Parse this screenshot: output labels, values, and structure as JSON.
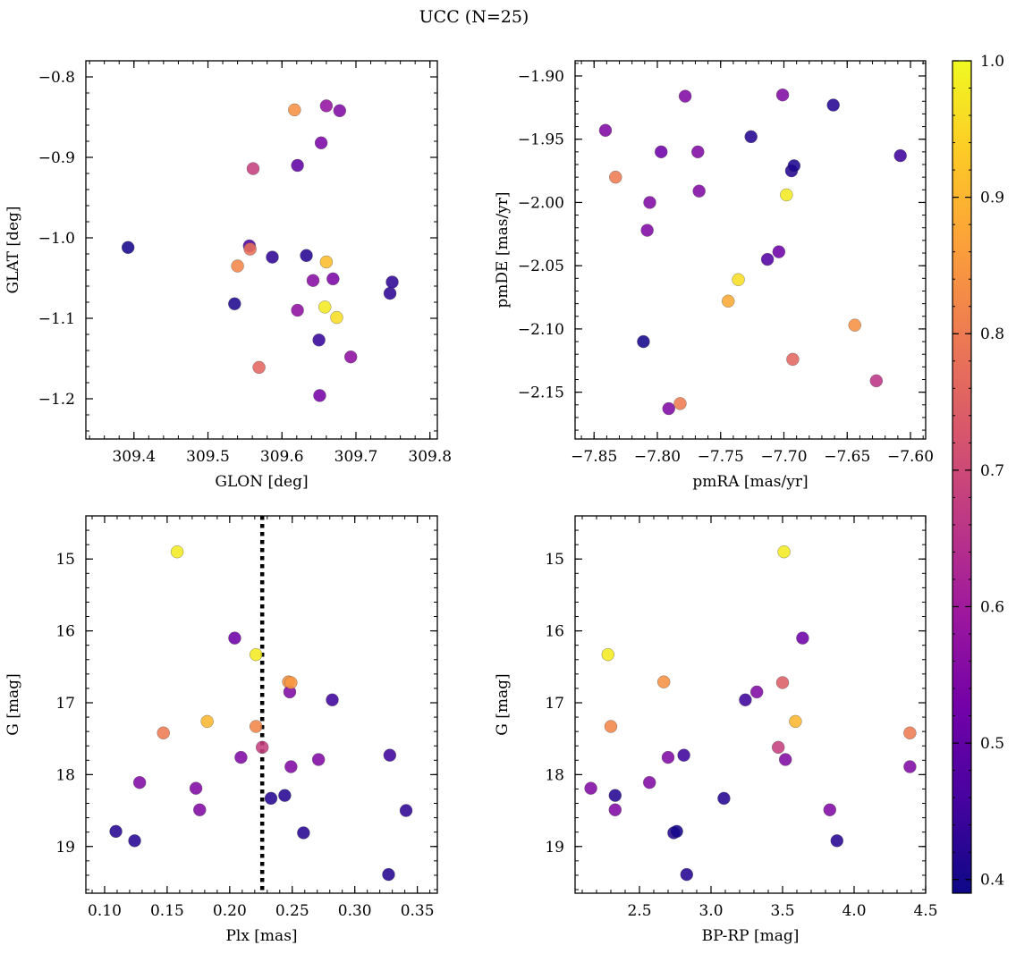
{
  "title": "UCC (N=25)",
  "colorbar": {
    "min": 0.39,
    "max": 1.0,
    "ticks": [
      0.4,
      0.5,
      0.6,
      0.7,
      0.8,
      0.9,
      1.0
    ],
    "tick_labels": [
      "0.4",
      "0.5",
      "0.6",
      "0.7",
      "0.8",
      "0.9",
      "1.0"
    ],
    "colormap": "plasma",
    "colormap_stops": [
      "#0d0887",
      "#46039f",
      "#7201a8",
      "#9c179e",
      "#bd3786",
      "#d8576b",
      "#ed7953",
      "#fb9f3a",
      "#fdca26",
      "#f0f921"
    ]
  },
  "chart_data": [
    {
      "type": "scatter",
      "xlabel": "GLON [deg]",
      "ylabel": "GLAT [deg]",
      "xlim": [
        309.335,
        309.81
      ],
      "ylim": [
        -1.25,
        -0.78
      ],
      "xticks": [
        309.4,
        309.5,
        309.6,
        309.7,
        309.8
      ],
      "xtick_labels": [
        "309.4",
        "309.5",
        "309.6",
        "309.7",
        "309.8"
      ],
      "yticks": [
        -0.8,
        -0.9,
        -1.0,
        -1.1,
        -1.2
      ],
      "ytick_labels": [
        "−0.8",
        "−0.9",
        "−1.0",
        "−1.1",
        "−1.2"
      ],
      "points": [
        {
          "x": 309.392,
          "y": -1.012,
          "c": 0.4
        },
        {
          "x": 309.536,
          "y": -1.082,
          "c": 0.41
        },
        {
          "x": 309.54,
          "y": -1.035,
          "c": 0.82
        },
        {
          "x": 309.556,
          "y": -1.01,
          "c": 0.47
        },
        {
          "x": 309.557,
          "y": -1.014,
          "c": 0.78
        },
        {
          "x": 309.561,
          "y": -0.914,
          "c": 0.68
        },
        {
          "x": 309.569,
          "y": -1.161,
          "c": 0.76
        },
        {
          "x": 309.587,
          "y": -1.024,
          "c": 0.43
        },
        {
          "x": 309.617,
          "y": -0.841,
          "c": 0.84
        },
        {
          "x": 309.621,
          "y": -1.09,
          "c": 0.57
        },
        {
          "x": 309.621,
          "y": -0.91,
          "c": 0.5
        },
        {
          "x": 309.633,
          "y": -1.022,
          "c": 0.42
        },
        {
          "x": 309.642,
          "y": -1.053,
          "c": 0.56
        },
        {
          "x": 309.65,
          "y": -1.127,
          "c": 0.44
        },
        {
          "x": 309.651,
          "y": -1.196,
          "c": 0.53
        },
        {
          "x": 309.653,
          "y": -0.882,
          "c": 0.54
        },
        {
          "x": 309.658,
          "y": -1.086,
          "c": 0.98
        },
        {
          "x": 309.66,
          "y": -1.03,
          "c": 0.91
        },
        {
          "x": 309.66,
          "y": -0.836,
          "c": 0.58
        },
        {
          "x": 309.669,
          "y": -1.051,
          "c": 0.54
        },
        {
          "x": 309.674,
          "y": -1.099,
          "c": 0.96
        },
        {
          "x": 309.678,
          "y": -0.842,
          "c": 0.55
        },
        {
          "x": 309.693,
          "y": -1.148,
          "c": 0.57
        },
        {
          "x": 309.746,
          "y": -1.069,
          "c": 0.43
        },
        {
          "x": 309.749,
          "y": -1.055,
          "c": 0.43
        }
      ]
    },
    {
      "type": "scatter",
      "xlabel": "pmRA [mas/yr]",
      "ylabel": "pmDE [mas/yr]",
      "xlim": [
        -7.865,
        -7.588
      ],
      "ylim": [
        -2.187,
        -1.888
      ],
      "xticks": [
        -7.85,
        -7.8,
        -7.75,
        -7.7,
        -7.65,
        -7.6
      ],
      "xtick_labels": [
        "−7.85",
        "−7.80",
        "−7.75",
        "−7.70",
        "−7.65",
        "−7.60"
      ],
      "yticks": [
        -1.9,
        -1.95,
        -2.0,
        -2.05,
        -2.1,
        -2.15
      ],
      "ytick_labels": [
        "−1.90",
        "−1.95",
        "−2.00",
        "−2.05",
        "−2.10",
        "−2.15"
      ],
      "points": [
        {
          "x": -7.841,
          "y": -1.943,
          "c": 0.55
        },
        {
          "x": -7.833,
          "y": -1.98,
          "c": 0.8
        },
        {
          "x": -7.811,
          "y": -2.11,
          "c": 0.4
        },
        {
          "x": -7.808,
          "y": -2.022,
          "c": 0.55
        },
        {
          "x": -7.806,
          "y": -2.0,
          "c": 0.55
        },
        {
          "x": -7.797,
          "y": -1.96,
          "c": 0.52
        },
        {
          "x": -7.791,
          "y": -2.163,
          "c": 0.55
        },
        {
          "x": -7.782,
          "y": -2.159,
          "c": 0.8
        },
        {
          "x": -7.778,
          "y": -1.916,
          "c": 0.55
        },
        {
          "x": -7.768,
          "y": -1.96,
          "c": 0.55
        },
        {
          "x": -7.767,
          "y": -1.991,
          "c": 0.55
        },
        {
          "x": -7.744,
          "y": -2.078,
          "c": 0.88
        },
        {
          "x": -7.736,
          "y": -2.061,
          "c": 0.96
        },
        {
          "x": -7.726,
          "y": -1.948,
          "c": 0.42
        },
        {
          "x": -7.713,
          "y": -2.045,
          "c": 0.48
        },
        {
          "x": -7.704,
          "y": -2.039,
          "c": 0.52
        },
        {
          "x": -7.701,
          "y": -1.915,
          "c": 0.55
        },
        {
          "x": -7.698,
          "y": -1.994,
          "c": 0.98
        },
        {
          "x": -7.694,
          "y": -1.975,
          "c": 0.42
        },
        {
          "x": -7.693,
          "y": -2.124,
          "c": 0.76
        },
        {
          "x": -7.692,
          "y": -1.971,
          "c": 0.41
        },
        {
          "x": -7.661,
          "y": -1.923,
          "c": 0.42
        },
        {
          "x": -7.644,
          "y": -2.097,
          "c": 0.84
        },
        {
          "x": -7.627,
          "y": -2.141,
          "c": 0.66
        },
        {
          "x": -7.608,
          "y": -1.963,
          "c": 0.45
        }
      ]
    },
    {
      "type": "scatter",
      "xlabel": "Plx [mas]",
      "ylabel": "G [mag]",
      "xlim": [
        0.085,
        0.366
      ],
      "ylim": [
        19.65,
        14.4
      ],
      "xticks": [
        0.1,
        0.15,
        0.2,
        0.25,
        0.3,
        0.35
      ],
      "xtick_labels": [
        "0.10",
        "0.15",
        "0.20",
        "0.25",
        "0.30",
        "0.35"
      ],
      "yticks": [
        15,
        16,
        17,
        18,
        19
      ],
      "ytick_labels": [
        "15",
        "16",
        "17",
        "18",
        "19"
      ],
      "vline": 0.226,
      "points": [
        {
          "x": 0.109,
          "y": 18.79,
          "c": 0.42
        },
        {
          "x": 0.124,
          "y": 18.92,
          "c": 0.42
        },
        {
          "x": 0.128,
          "y": 18.11,
          "c": 0.55
        },
        {
          "x": 0.147,
          "y": 17.42,
          "c": 0.8
        },
        {
          "x": 0.158,
          "y": 14.9,
          "c": 0.98
        },
        {
          "x": 0.173,
          "y": 18.19,
          "c": 0.55
        },
        {
          "x": 0.176,
          "y": 18.49,
          "c": 0.55
        },
        {
          "x": 0.182,
          "y": 17.26,
          "c": 0.9
        },
        {
          "x": 0.204,
          "y": 16.1,
          "c": 0.52
        },
        {
          "x": 0.209,
          "y": 17.76,
          "c": 0.55
        },
        {
          "x": 0.221,
          "y": 16.33,
          "c": 0.98
        },
        {
          "x": 0.221,
          "y": 17.33,
          "c": 0.82
        },
        {
          "x": 0.226,
          "y": 17.62,
          "c": 0.68
        },
        {
          "x": 0.233,
          "y": 18.33,
          "c": 0.42
        },
        {
          "x": 0.244,
          "y": 18.29,
          "c": 0.42
        },
        {
          "x": 0.247,
          "y": 16.71,
          "c": 0.84
        },
        {
          "x": 0.248,
          "y": 16.85,
          "c": 0.55
        },
        {
          "x": 0.249,
          "y": 17.89,
          "c": 0.55
        },
        {
          "x": 0.249,
          "y": 16.72,
          "c": 0.85
        },
        {
          "x": 0.259,
          "y": 18.81,
          "c": 0.42
        },
        {
          "x": 0.271,
          "y": 17.79,
          "c": 0.55
        },
        {
          "x": 0.282,
          "y": 16.96,
          "c": 0.45
        },
        {
          "x": 0.327,
          "y": 19.39,
          "c": 0.42
        },
        {
          "x": 0.328,
          "y": 17.73,
          "c": 0.45
        },
        {
          "x": 0.341,
          "y": 18.5,
          "c": 0.43
        }
      ]
    },
    {
      "type": "scatter",
      "xlabel": "BP-RP [mag]",
      "ylabel": "G [mag]",
      "xlim": [
        2.05,
        4.5
      ],
      "ylim": [
        19.65,
        14.4
      ],
      "xticks": [
        2.5,
        3.0,
        3.5,
        4.0,
        4.5
      ],
      "xtick_labels": [
        "2.5",
        "3.0",
        "3.5",
        "4.0",
        "4.5"
      ],
      "yticks": [
        15,
        16,
        17,
        18,
        19
      ],
      "ytick_labels": [
        "15",
        "16",
        "17",
        "18",
        "19"
      ],
      "points": [
        {
          "x": 2.16,
          "y": 18.19,
          "c": 0.55
        },
        {
          "x": 2.28,
          "y": 16.33,
          "c": 0.98
        },
        {
          "x": 2.3,
          "y": 17.33,
          "c": 0.82
        },
        {
          "x": 2.33,
          "y": 18.29,
          "c": 0.42
        },
        {
          "x": 2.33,
          "y": 18.49,
          "c": 0.55
        },
        {
          "x": 2.57,
          "y": 18.11,
          "c": 0.55
        },
        {
          "x": 2.67,
          "y": 16.71,
          "c": 0.84
        },
        {
          "x": 2.7,
          "y": 17.76,
          "c": 0.55
        },
        {
          "x": 2.74,
          "y": 18.81,
          "c": 0.42
        },
        {
          "x": 2.76,
          "y": 18.79,
          "c": 0.4
        },
        {
          "x": 2.81,
          "y": 17.73,
          "c": 0.45
        },
        {
          "x": 2.83,
          "y": 19.39,
          "c": 0.42
        },
        {
          "x": 3.09,
          "y": 18.33,
          "c": 0.42
        },
        {
          "x": 3.24,
          "y": 16.96,
          "c": 0.45
        },
        {
          "x": 3.32,
          "y": 16.85,
          "c": 0.55
        },
        {
          "x": 3.47,
          "y": 17.62,
          "c": 0.68
        },
        {
          "x": 3.5,
          "y": 16.72,
          "c": 0.74
        },
        {
          "x": 3.51,
          "y": 14.9,
          "c": 0.98
        },
        {
          "x": 3.52,
          "y": 17.79,
          "c": 0.55
        },
        {
          "x": 3.59,
          "y": 17.26,
          "c": 0.9
        },
        {
          "x": 3.64,
          "y": 16.1,
          "c": 0.52
        },
        {
          "x": 3.83,
          "y": 18.49,
          "c": 0.55
        },
        {
          "x": 3.88,
          "y": 18.92,
          "c": 0.42
        },
        {
          "x": 4.39,
          "y": 17.42,
          "c": 0.8
        },
        {
          "x": 4.39,
          "y": 17.89,
          "c": 0.55
        }
      ]
    }
  ]
}
